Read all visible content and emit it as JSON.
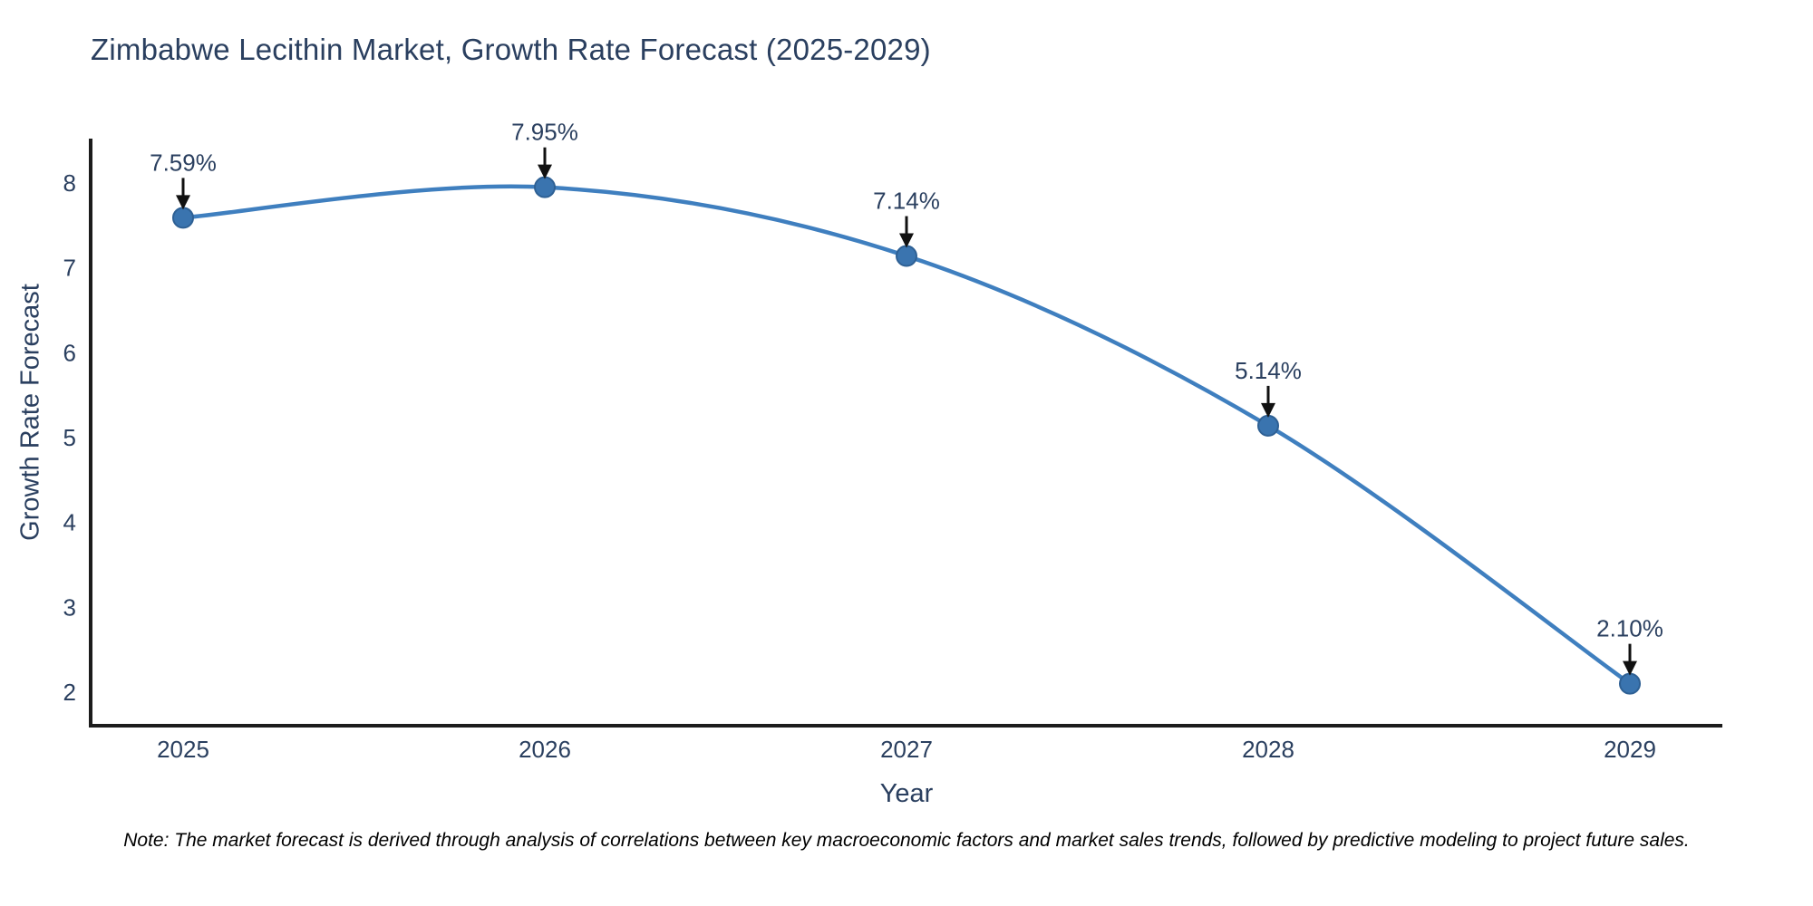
{
  "title": "Zimbabwe Lecithin Market, Growth Rate Forecast (2025-2029)",
  "note": "Note: The market forecast is derived through analysis of correlations between key macroeconomic factors and market sales trends, followed by predictive modeling to project future sales.",
  "chart_data": {
    "type": "line",
    "title": "Zimbabwe Lecithin Market, Growth Rate Forecast (2025-2029)",
    "x": [
      "2025",
      "2026",
      "2027",
      "2028",
      "2029"
    ],
    "values": [
      7.59,
      7.95,
      7.14,
      5.14,
      2.1
    ],
    "point_labels": [
      "7.59%",
      "7.95%",
      "7.14%",
      "5.14%",
      "2.10%"
    ],
    "xlabel": "Year",
    "ylabel": "Growth Rate Forecast",
    "yticks": [
      2,
      3,
      4,
      5,
      6,
      7,
      8
    ],
    "ylim": [
      1.6,
      8.55
    ],
    "grid": false,
    "legend": false,
    "smooth": true,
    "line_color": "#3f7fbf",
    "marker_color": "#3a74af",
    "marker_edge_color": "#2e6094",
    "axis_color": "#1c1c1c",
    "text_color": "#2a3f5f",
    "annotation_color": "#2a3f5f",
    "arrow_color": "#111111"
  }
}
